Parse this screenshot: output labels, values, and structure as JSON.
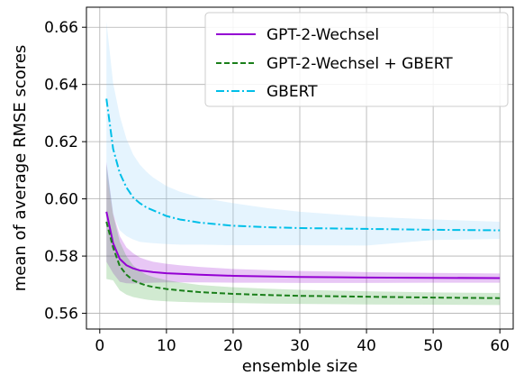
{
  "chart_data": {
    "type": "line",
    "title": "",
    "xlabel": "ensemble size",
    "ylabel": "mean of average RMSE scores",
    "xlim": [
      -2,
      62
    ],
    "ylim": [
      0.5545,
      0.667
    ],
    "xticks": [
      0,
      10,
      20,
      30,
      40,
      50,
      60
    ],
    "yticks": [
      0.56,
      0.58,
      0.6,
      0.62,
      0.64,
      0.66
    ],
    "xtick_labels": [
      "0",
      "10",
      "20",
      "30",
      "40",
      "50",
      "60"
    ],
    "ytick_labels": [
      "0.56",
      "0.58",
      "0.60",
      "0.62",
      "0.64",
      "0.66"
    ],
    "grid": true,
    "legend_position": "top-right",
    "x": [
      1,
      2,
      3,
      4,
      5,
      6,
      7,
      8,
      10,
      12,
      15,
      20,
      25,
      30,
      40,
      50,
      60
    ],
    "series": [
      {
        "name": "GPT-2-Wechsel",
        "color": "#9400d3",
        "linestyle": "solid",
        "values": [
          0.5955,
          0.5845,
          0.579,
          0.5768,
          0.5757,
          0.575,
          0.5747,
          0.5744,
          0.574,
          0.5738,
          0.5735,
          0.5731,
          0.5729,
          0.5727,
          0.5725,
          0.5724,
          0.5723
        ],
        "band_upper": [
          0.613,
          0.595,
          0.587,
          0.583,
          0.581,
          0.5795,
          0.5787,
          0.578,
          0.5773,
          0.5768,
          0.5762,
          0.5755,
          0.5751,
          0.5748,
          0.5744,
          0.5741,
          0.5739
        ],
        "band_lower": [
          0.578,
          0.574,
          0.571,
          0.5705,
          0.5704,
          0.5705,
          0.5706,
          0.5707,
          0.5708,
          0.5708,
          0.5708,
          0.5707,
          0.5707,
          0.5706,
          0.5706,
          0.5707,
          0.5707
        ]
      },
      {
        "name": "GPT-2-Wechsel + GBERT",
        "color": "#1a7f1a",
        "band_color": "#2ca02c",
        "linestyle": "dashed",
        "values": [
          0.592,
          0.583,
          0.5765,
          0.5735,
          0.5715,
          0.5705,
          0.5697,
          0.5692,
          0.5685,
          0.568,
          0.5674,
          0.5668,
          0.5664,
          0.5661,
          0.5658,
          0.5655,
          0.5653
        ],
        "band_upper": [
          0.612,
          0.5945,
          0.585,
          0.58,
          0.5768,
          0.5748,
          0.5735,
          0.5727,
          0.5716,
          0.5708,
          0.5699,
          0.5691,
          0.5686,
          0.5682,
          0.5677,
          0.5673,
          0.5671
        ],
        "band_lower": [
          0.572,
          0.5715,
          0.568,
          0.5665,
          0.5657,
          0.5652,
          0.5648,
          0.5645,
          0.5642,
          0.564,
          0.5638,
          0.5636,
          0.5634,
          0.5633,
          0.5631,
          0.563,
          0.5629
        ]
      },
      {
        "name": "GBERT",
        "color": "#00bfe8",
        "band_color": "#87cefa",
        "linestyle": "dashdot",
        "values": [
          0.635,
          0.6175,
          0.609,
          0.604,
          0.6005,
          0.5985,
          0.597,
          0.596,
          0.594,
          0.5928,
          0.5917,
          0.5906,
          0.5901,
          0.5898,
          0.5895,
          0.5892,
          0.589
        ],
        "band_upper": [
          0.662,
          0.6405,
          0.629,
          0.621,
          0.6155,
          0.612,
          0.6095,
          0.6075,
          0.6045,
          0.6025,
          0.6005,
          0.5985,
          0.5968,
          0.5955,
          0.5938,
          0.5928,
          0.592
        ],
        "band_lower": [
          0.608,
          0.5945,
          0.589,
          0.587,
          0.5858,
          0.585,
          0.5847,
          0.5845,
          0.5842,
          0.584,
          0.584,
          0.5838,
          0.5838,
          0.5838,
          0.5837,
          0.5856,
          0.586
        ]
      }
    ]
  }
}
